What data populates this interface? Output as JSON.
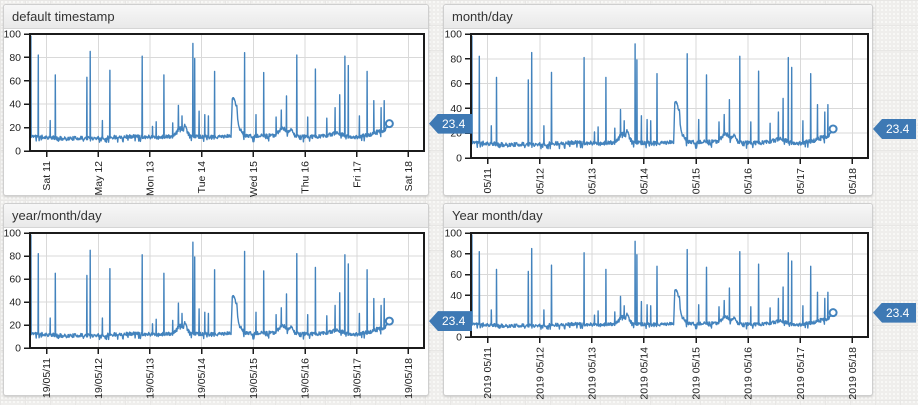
{
  "page": {
    "background": "#efeeec",
    "accent_blue": "#4383bd",
    "badge_color": "#3e79b4"
  },
  "panels": [
    {
      "title": "default timestamp",
      "x_labels": [
        "Sat 11",
        "May 12",
        "Mon 13",
        "Tue 14",
        "Wed 15",
        "Thu 16",
        "Fri 17",
        "Sat 18"
      ],
      "badge": "23.4"
    },
    {
      "title": "month/day",
      "x_labels": [
        "05/11",
        "05/12",
        "05/13",
        "05/14",
        "05/15",
        "05/16",
        "05/17",
        "05/18"
      ],
      "badge": "23.4"
    },
    {
      "title": "year/month/day",
      "x_labels": [
        "19/05/11",
        "19/05/12",
        "19/05/13",
        "19/05/14",
        "19/05/15",
        "19/05/16",
        "19/05/17",
        "19/05/18"
      ],
      "badge": "23.4"
    },
    {
      "title": "Year month/day",
      "x_labels": [
        "2019 05/11",
        "2019 05/12",
        "2019 05/13",
        "2019 05/14",
        "2019 05/15",
        "2019 05/16",
        "2019 05/17",
        "2019 05/18"
      ],
      "badge": "23.4"
    }
  ],
  "chart_data": {
    "type": "line",
    "title": "",
    "xlabel": "",
    "ylabel": "",
    "x_unit": "day of May 2019",
    "x_domain": [
      10.68,
      18.3
    ],
    "x_ticks": [
      11,
      12,
      13,
      14,
      15,
      16,
      17,
      18
    ],
    "ylim": [
      0,
      100
    ],
    "y_ticks": [
      0,
      20,
      40,
      60,
      80,
      100
    ],
    "grid": true,
    "legend": "none",
    "line_color": "#4383bd",
    "last_value": 23.4,
    "last_x": 17.63,
    "note": "same series shown in all four panels; x axes differ only in date label format",
    "baseline_points": [
      [
        10.68,
        13
      ],
      [
        10.9,
        12
      ],
      [
        11.1,
        11.5
      ],
      [
        11.35,
        10.5
      ],
      [
        11.6,
        11
      ],
      [
        11.9,
        11
      ],
      [
        12.15,
        11.5
      ],
      [
        12.4,
        12
      ],
      [
        12.7,
        12.5
      ],
      [
        12.95,
        12
      ],
      [
        13.2,
        12
      ],
      [
        13.45,
        12.5
      ],
      [
        13.52,
        16
      ],
      [
        13.58,
        21
      ],
      [
        13.63,
        18
      ],
      [
        13.68,
        22
      ],
      [
        13.73,
        15
      ],
      [
        13.8,
        13
      ],
      [
        13.9,
        12.5
      ],
      [
        14.1,
        12
      ],
      [
        14.3,
        12
      ],
      [
        14.5,
        12.5
      ],
      [
        14.57,
        13
      ],
      [
        14.59,
        43
      ],
      [
        14.62,
        46
      ],
      [
        14.65,
        42
      ],
      [
        14.68,
        38
      ],
      [
        14.7,
        26
      ],
      [
        14.73,
        20
      ],
      [
        14.78,
        16
      ],
      [
        14.85,
        13
      ],
      [
        15.0,
        12.5
      ],
      [
        15.2,
        13
      ],
      [
        15.4,
        13
      ],
      [
        15.5,
        17
      ],
      [
        15.58,
        20
      ],
      [
        15.65,
        16
      ],
      [
        15.72,
        19
      ],
      [
        15.8,
        13
      ],
      [
        15.95,
        12.5
      ],
      [
        16.1,
        12
      ],
      [
        16.3,
        12.5
      ],
      [
        16.5,
        14
      ],
      [
        16.62,
        16
      ],
      [
        16.72,
        14
      ],
      [
        16.85,
        12
      ],
      [
        17.0,
        12
      ],
      [
        17.15,
        13
      ],
      [
        17.3,
        14.5
      ],
      [
        17.42,
        17
      ],
      [
        17.5,
        16
      ],
      [
        17.56,
        19
      ],
      [
        17.63,
        23.4
      ]
    ],
    "spikes": [
      [
        10.688,
        100
      ],
      [
        10.698,
        98
      ],
      [
        10.84,
        82
      ],
      [
        11.07,
        26
      ],
      [
        11.17,
        65
      ],
      [
        11.78,
        63
      ],
      [
        11.845,
        85
      ],
      [
        12.08,
        26
      ],
      [
        12.225,
        69
      ],
      [
        12.85,
        81
      ],
      [
        13.05,
        21
      ],
      [
        13.12,
        25
      ],
      [
        13.27,
        65
      ],
      [
        13.44,
        24
      ],
      [
        13.55,
        39
      ],
      [
        13.62,
        30
      ],
      [
        13.83,
        92
      ],
      [
        13.865,
        79
      ],
      [
        13.95,
        34
      ],
      [
        14.06,
        31
      ],
      [
        14.13,
        30
      ],
      [
        14.25,
        68
      ],
      [
        14.83,
        84
      ],
      [
        15.05,
        31
      ],
      [
        15.2,
        67
      ],
      [
        15.44,
        29
      ],
      [
        15.54,
        35
      ],
      [
        15.64,
        47
      ],
      [
        15.84,
        82
      ],
      [
        16.05,
        29
      ],
      [
        16.2,
        70
      ],
      [
        16.42,
        28
      ],
      [
        16.58,
        37
      ],
      [
        16.67,
        48
      ],
      [
        16.77,
        81
      ],
      [
        16.835,
        73
      ],
      [
        17.05,
        30
      ],
      [
        17.2,
        68
      ],
      [
        17.33,
        43
      ],
      [
        17.47,
        37
      ],
      [
        17.53,
        43
      ]
    ],
    "noise_amp": 3.2
  }
}
